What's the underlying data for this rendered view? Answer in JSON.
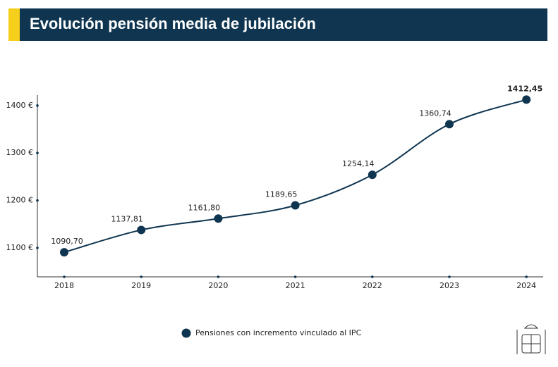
{
  "chart_data": {
    "type": "line",
    "title": "Evolución pensión media de jubilación",
    "categories": [
      "2018",
      "2019",
      "2020",
      "2021",
      "2022",
      "2023",
      "2024"
    ],
    "series": [
      {
        "name": "Pensiones con incremento vinculado al IPC",
        "color": "#0f3550",
        "values": [
          1090.7,
          1137.81,
          1161.8,
          1189.65,
          1254.14,
          1360.74,
          1412.45
        ],
        "value_labels": [
          "1090,70",
          "1137,81",
          "1161,80",
          "1189,65",
          "1254,14",
          "1360,74",
          "1412,45"
        ]
      }
    ],
    "ylim": [
      1039,
      1422
    ],
    "yticks": [
      {
        "value": 1100,
        "label": "1100 €"
      },
      {
        "value": 1200,
        "label": "1200 €"
      },
      {
        "value": 1300,
        "label": "1300 €"
      },
      {
        "value": 1400,
        "label": "1400 €"
      }
    ],
    "grid": false
  }
}
